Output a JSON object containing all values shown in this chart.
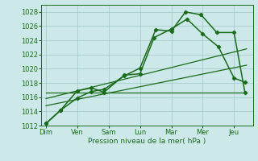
{
  "background_color": "#cce8e8",
  "grid_color": "#aacccc",
  "line_color": "#1a6b1a",
  "xlabel": "Pression niveau de la mer( hPa )",
  "ylim": [
    1012,
    1029
  ],
  "yticks": [
    1012,
    1014,
    1016,
    1018,
    1020,
    1022,
    1024,
    1026,
    1028
  ],
  "x_labels": [
    "Dim",
    "Ven",
    "Sam",
    "Lun",
    "Mar",
    "Mer",
    "Jeu"
  ],
  "x_positions": [
    0,
    1,
    2,
    3,
    4,
    5,
    6
  ],
  "xlim": [
    -0.15,
    6.6
  ],
  "series1": {
    "x": [
      0,
      0.45,
      1.0,
      1.45,
      1.85,
      2.5,
      3.0,
      3.45,
      4.0,
      4.5,
      5.0,
      5.5,
      6.0,
      6.35
    ],
    "y": [
      1012.3,
      1014.1,
      1016.9,
      1017.3,
      1016.7,
      1019.1,
      1019.3,
      1024.4,
      1025.6,
      1027.0,
      1024.9,
      1023.1,
      1018.7,
      1018.1
    ],
    "marker": "D",
    "markersize": 2.2,
    "linewidth": 1.1
  },
  "series2": {
    "x": [
      0,
      0.45,
      1.0,
      1.45,
      1.85,
      2.5,
      3.0,
      3.5,
      4.0,
      4.45,
      4.95,
      5.45,
      6.0,
      6.35
    ],
    "y": [
      1012.3,
      1014.1,
      1015.9,
      1016.8,
      1017.1,
      1019.0,
      1020.1,
      1025.5,
      1025.3,
      1028.0,
      1027.6,
      1025.1,
      1025.1,
      1016.6
    ],
    "marker": "D",
    "markersize": 2.2,
    "linewidth": 1.1
  },
  "series3_flat": {
    "x": [
      0.0,
      6.4
    ],
    "y": [
      1016.7,
      1016.7
    ],
    "linewidth": 0.9
  },
  "series4_trend": {
    "x": [
      0.0,
      6.4
    ],
    "y": [
      1015.8,
      1022.8
    ],
    "linewidth": 0.9
  },
  "series5_trend2": {
    "x": [
      0.0,
      6.4
    ],
    "y": [
      1014.8,
      1020.5
    ],
    "linewidth": 0.9
  }
}
